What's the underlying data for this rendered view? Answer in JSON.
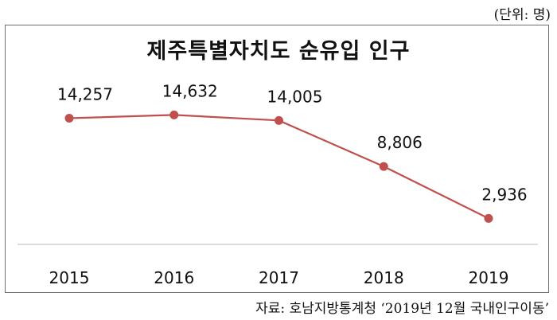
{
  "unit_note": "(단위: 명)",
  "source_note": "자료: 호남지방통계청 ‘2019년 12월 국내인구이동’",
  "colors": {
    "line": "#c0504d",
    "axis": "#d0d0d0",
    "frame": "#6f6f6f"
  },
  "chart_data": {
    "type": "line",
    "title": "제주특별자치도 순유입 인구",
    "xlabel": "",
    "ylabel": "",
    "categories": [
      "2015",
      "2016",
      "2017",
      "2018",
      "2019"
    ],
    "series": [
      {
        "values": [
          14257,
          14632,
          14005,
          8806,
          2936
        ]
      }
    ],
    "data_labels": [
      "14,257",
      "14,632",
      "14,005",
      "8,806",
      "2,936"
    ],
    "ylim": [
      0,
      26000
    ],
    "grid": false,
    "legend": "none"
  }
}
